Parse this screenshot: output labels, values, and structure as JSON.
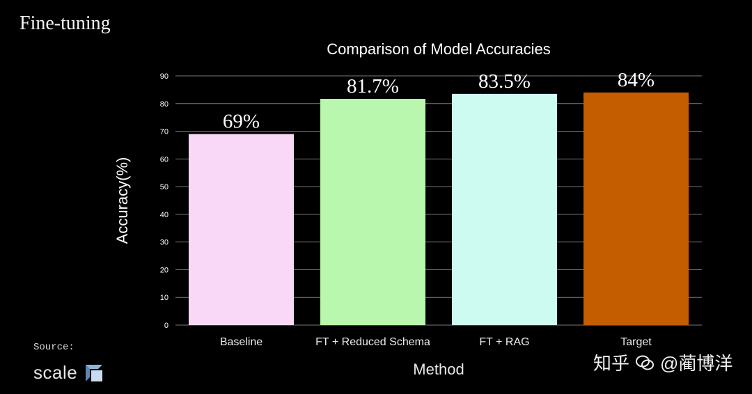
{
  "slide_title": "Fine-tuning",
  "source_label": "Source:",
  "logo_text": "scale",
  "logo_icon": "scale-logo-icon",
  "watermark": {
    "platform": "知乎",
    "handle": "@蔺博洋"
  },
  "colors": {
    "background": "#000000",
    "gridline": "#7a7a7a",
    "bars": [
      "#f9d8f7",
      "#b8f7ad",
      "#cdfbf1",
      "#c45c00"
    ]
  },
  "chart_data": {
    "type": "bar",
    "title": "Comparison of Model Accuracies",
    "xlabel": "Method",
    "ylabel": "Accuracy(%)",
    "categories": [
      "Baseline",
      "FT + Reduced Schema",
      "FT + RAG",
      "Target"
    ],
    "values": [
      69,
      81.7,
      83.5,
      84
    ],
    "data_labels": [
      "69%",
      "81.7%",
      "83.5%",
      "84%"
    ],
    "ylim": [
      0,
      90
    ],
    "yticks": [
      0,
      10,
      20,
      30,
      40,
      50,
      60,
      70,
      80,
      90
    ],
    "grid": true
  }
}
